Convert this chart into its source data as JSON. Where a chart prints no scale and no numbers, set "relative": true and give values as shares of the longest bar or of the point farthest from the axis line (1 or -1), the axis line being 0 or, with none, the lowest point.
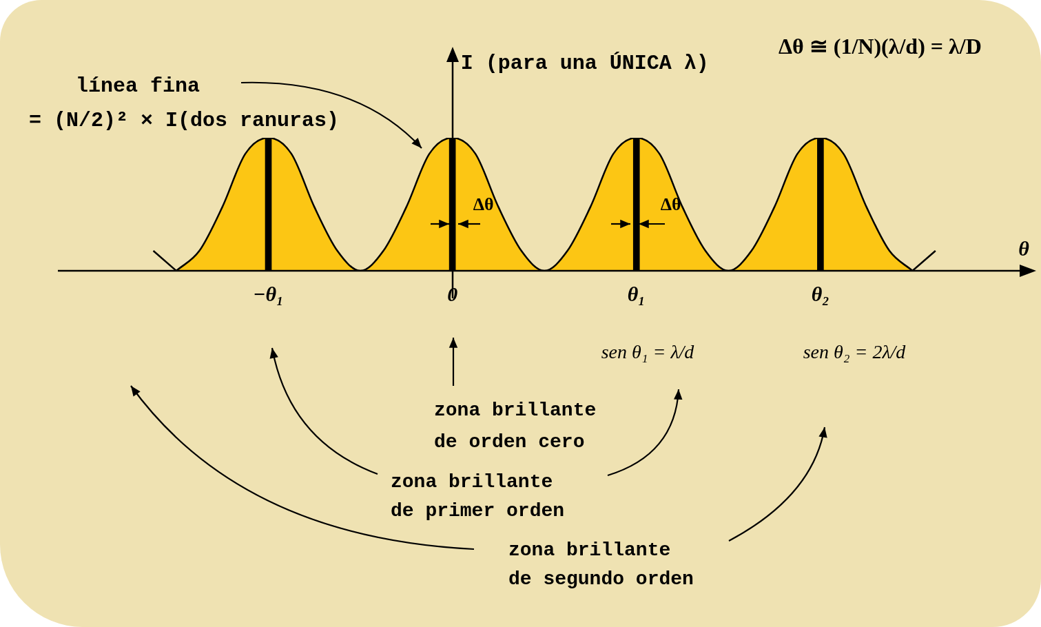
{
  "chart_data": {
    "type": "area",
    "relative": true,
    "legend": false,
    "grid": false,
    "ylabel": "I (para una ÚNICA λ)",
    "xlabel": "θ",
    "categories": [
      null,
      null,
      null,
      null,
      null,
      null,
      null,
      null,
      null,
      "−θ₁",
      null,
      null,
      null,
      null,
      null,
      null,
      null,
      "0",
      null,
      null,
      null,
      null,
      null,
      null,
      null,
      "θ₁",
      null,
      null,
      null,
      null,
      null,
      null,
      null,
      "θ₂",
      null,
      null,
      null,
      null,
      null,
      null,
      null,
      null
    ],
    "series": [
      {
        "color": "#fcc614",
        "values": [
          null,
          null,
          null,
          null,
          null,
          0,
          0.15,
          0.48,
          0.88,
          1,
          0.88,
          0.48,
          0.15,
          0,
          0.15,
          0.48,
          0.88,
          1,
          0.88,
          0.48,
          0.15,
          0,
          0.15,
          0.48,
          0.88,
          1,
          0.88,
          0.48,
          0.15,
          0,
          0.15,
          0.48,
          0.88,
          1,
          0.88,
          0.48,
          0.15,
          0,
          null,
          null,
          null,
          null
        ]
      },
      {
        "type": "line",
        "color": "#000000",
        "values": [
          null,
          null,
          null,
          null,
          0.15,
          0,
          null,
          null,
          null,
          null,
          null,
          null,
          null,
          null,
          null,
          null,
          null,
          null,
          null,
          null,
          null,
          null,
          null,
          null,
          null,
          null,
          null,
          null,
          null,
          null,
          null,
          null,
          null,
          null,
          null,
          null,
          null,
          0,
          0.15,
          null,
          null,
          null
        ]
      },
      {
        "type": "bar",
        "color": "#000000",
        "values": [
          null,
          null,
          null,
          null,
          null,
          null,
          null,
          null,
          null,
          1,
          null,
          null,
          null,
          null,
          null,
          null,
          null,
          1,
          null,
          null,
          null,
          null,
          null,
          null,
          null,
          1,
          null,
          null,
          null,
          null,
          null,
          null,
          null,
          1,
          null,
          null,
          null,
          null,
          null,
          null,
          null,
          null
        ]
      }
    ],
    "annotations": [
      "Δθ ≅ (1/N)(λ/d) = λ/D",
      "línea fina\n= (N/2)² × I(dos ranuras)",
      {
        "text": "Δθ",
        "x": "0"
      },
      {
        "text": "Δθ",
        "x": "θ₁"
      },
      "sen θ₁ = λ/d",
      "sen θ₂ = 2λ/d",
      "zona brillante\nde orden cero",
      "zona brillante\nde primer orden",
      "zona brillante\nde segundo orden"
    ]
  }
}
